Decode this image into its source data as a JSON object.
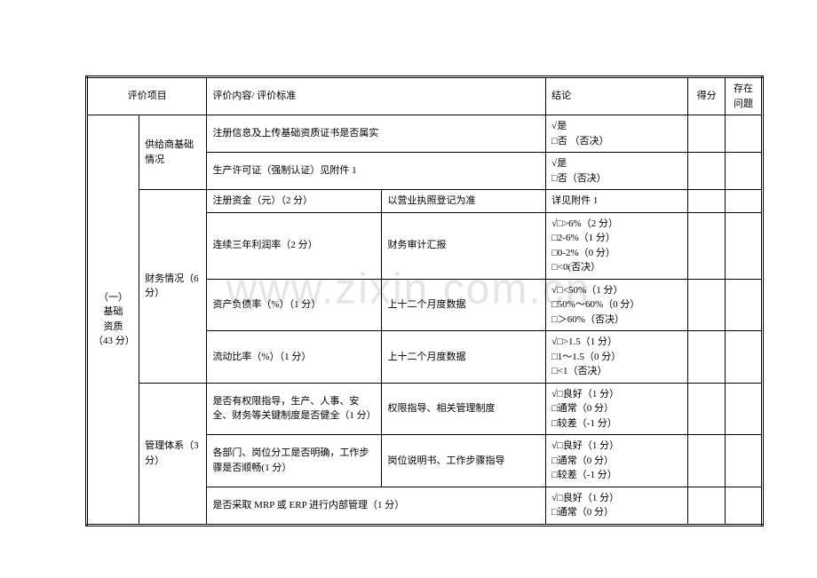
{
  "watermark": "www.zixin.com.cn",
  "header": {
    "item": "评价项目",
    "content": "评价内容/ 评价标准",
    "conclusion": "结论",
    "score": "得分",
    "issue": "存在问题"
  },
  "section": {
    "title_line1": "（一）",
    "title_line2": "基础",
    "title_line3": "资质",
    "title_line4": "（43 分）"
  },
  "groups": {
    "g1": {
      "name": "供给商基础情况"
    },
    "g2": {
      "name": "财务情况（6 分）"
    },
    "g3": {
      "name": "管理体系（3 分）"
    }
  },
  "rows": {
    "r1": {
      "content": "注册信息及上传基础资质证书是否属实",
      "conc": "√是\n□否 （否决）"
    },
    "r2": {
      "content": "生产许可证（强制认证）见附件 1",
      "conc": "√是\n□否（否决）"
    },
    "r3": {
      "c1": "注册资金（元）（2 分）",
      "c2": "以营业执照登记为准",
      "conc": "详见附件 1"
    },
    "r4": {
      "c1": "连续三年利润率（2 分）",
      "c2": "财务审计汇报",
      "conc": "√□>6%（2 分）\n□2-6%（1 分）\n□0-2%（0 分）\n□<0(否决）"
    },
    "r5": {
      "c1": "资产负债率（%）（1 分）",
      "c2": "上十二个月度数据",
      "conc": "√□<50%（1 分）\n□50%～60%（0 分）\n□＞60%（否决）"
    },
    "r6": {
      "c1": "流动比率（%）（1 分）",
      "c2": "上十二个月度数据",
      "conc": "√□>1.5（1 分）\n□1～1.5（0 分）\n□<1（否决）"
    },
    "r7": {
      "c1": "是否有权限指导，生产、人事、安全、财务等关键制度是否健全（1 分）",
      "c2": "权限指导、相关管理制度",
      "conc": "√□良好（1 分）\n□通常（0 分）\n□较差（-1 分）"
    },
    "r8": {
      "c1": "各部门、岗位分工是否明确，工作步骤是否顺畅(1 分）",
      "c2": "岗位说明书、工作步骤指导",
      "conc": "√□良好（1 分）\n□通常（0 分）\n□较差（-1 分）"
    },
    "r9": {
      "c1": "是否采取 MRP 或 ERP 进行内部管理（1 分）",
      "conc": "√□良好（1 分）\n□通常（0 分）"
    }
  }
}
